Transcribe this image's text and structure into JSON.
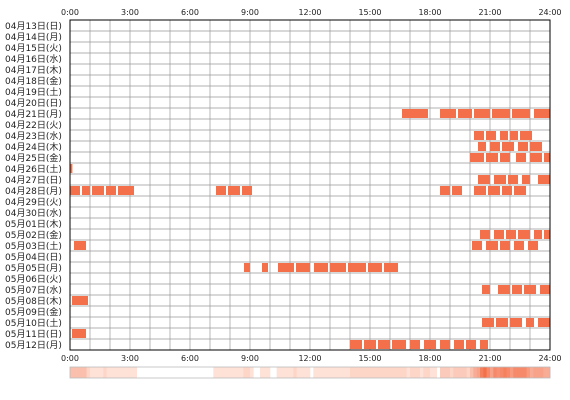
{
  "chart_data": {
    "type": "heatmap",
    "title": "",
    "xlabel": "",
    "ylabel": "",
    "x_ticks": [
      "0:00",
      "3:00",
      "6:00",
      "9:00",
      "12:00",
      "15:00",
      "18:00",
      "21:00",
      "24:00"
    ],
    "x_range_hours": [
      0,
      24
    ],
    "grid": true,
    "colors": {
      "activity": "#f4704a",
      "grid": "#999999",
      "border": "#000000",
      "density_low": "#fff3ec",
      "density_high": "#f4704a"
    },
    "rows": [
      {
        "label": "04月13日(日)",
        "segments": []
      },
      {
        "label": "04月14日(月)",
        "segments": []
      },
      {
        "label": "04月15日(火)",
        "segments": []
      },
      {
        "label": "04月16日(水)",
        "segments": []
      },
      {
        "label": "04月17日(木)",
        "segments": []
      },
      {
        "label": "04月18日(金)",
        "segments": []
      },
      {
        "label": "04月19日(土)",
        "segments": []
      },
      {
        "label": "04月20日(日)",
        "segments": []
      },
      {
        "label": "04月21日(月)",
        "segments": [
          [
            16.6,
            17.9
          ],
          [
            18.5,
            19.3
          ],
          [
            19.4,
            20.1
          ],
          [
            20.2,
            21.0
          ],
          [
            21.1,
            22.0
          ],
          [
            22.1,
            23.0
          ],
          [
            23.2,
            24.0
          ]
        ]
      },
      {
        "label": "04月22日(火)",
        "segments": []
      },
      {
        "label": "04月23日(水)",
        "segments": [
          [
            20.2,
            20.7
          ],
          [
            20.8,
            21.3
          ],
          [
            21.5,
            21.9
          ],
          [
            22.0,
            22.4
          ],
          [
            22.5,
            23.1
          ]
        ]
      },
      {
        "label": "04月24日(木)",
        "segments": [
          [
            20.4,
            20.8
          ],
          [
            21.0,
            21.5
          ],
          [
            21.6,
            22.2
          ],
          [
            22.4,
            22.9
          ],
          [
            23.0,
            23.6
          ]
        ]
      },
      {
        "label": "04月25日(金)",
        "segments": [
          [
            20.0,
            20.7
          ],
          [
            20.8,
            21.4
          ],
          [
            21.5,
            22.0
          ],
          [
            22.3,
            22.8
          ],
          [
            23.0,
            23.6
          ],
          [
            23.7,
            24.0
          ]
        ]
      },
      {
        "label": "04月26日(土)",
        "segments": [
          [
            0.0,
            0.12
          ]
        ]
      },
      {
        "label": "04月27日(日)",
        "segments": [
          [
            20.4,
            21.0
          ],
          [
            21.2,
            21.8
          ],
          [
            21.9,
            22.4
          ],
          [
            22.6,
            23.0
          ],
          [
            23.4,
            24.0
          ]
        ]
      },
      {
        "label": "04月28日(月)",
        "segments": [
          [
            0.0,
            0.5
          ],
          [
            0.6,
            1.0
          ],
          [
            1.1,
            1.7
          ],
          [
            1.8,
            2.3
          ],
          [
            2.4,
            3.2
          ],
          [
            7.3,
            7.8
          ],
          [
            7.9,
            8.5
          ],
          [
            8.6,
            9.1
          ],
          [
            18.5,
            19.0
          ],
          [
            19.1,
            19.6
          ],
          [
            20.2,
            20.8
          ],
          [
            20.9,
            21.5
          ],
          [
            21.6,
            22.1
          ],
          [
            22.2,
            22.8
          ]
        ]
      },
      {
        "label": "04月29日(火)",
        "segments": []
      },
      {
        "label": "04月30日(水)",
        "segments": []
      },
      {
        "label": "05月01日(木)",
        "segments": []
      },
      {
        "label": "05月02日(金)",
        "segments": [
          [
            20.5,
            21.0
          ],
          [
            21.2,
            21.7
          ],
          [
            21.8,
            22.3
          ],
          [
            22.4,
            23.0
          ],
          [
            23.2,
            23.6
          ],
          [
            23.7,
            24.0
          ]
        ]
      },
      {
        "label": "05月03日(土)",
        "segments": [
          [
            0.2,
            0.8
          ],
          [
            20.1,
            20.6
          ],
          [
            20.8,
            21.4
          ],
          [
            21.5,
            22.0
          ],
          [
            22.2,
            22.7
          ],
          [
            22.9,
            23.4
          ]
        ]
      },
      {
        "label": "05月04日(日)",
        "segments": []
      },
      {
        "label": "05月05日(月)",
        "segments": [
          [
            8.7,
            9.0
          ],
          [
            9.6,
            9.9
          ],
          [
            10.4,
            11.2
          ],
          [
            11.3,
            12.0
          ],
          [
            12.2,
            12.9
          ],
          [
            13.0,
            13.8
          ],
          [
            13.9,
            14.8
          ],
          [
            14.9,
            15.6
          ],
          [
            15.7,
            16.4
          ]
        ]
      },
      {
        "label": "05月06日(火)",
        "segments": []
      },
      {
        "label": "05月07日(水)",
        "segments": [
          [
            20.6,
            21.0
          ],
          [
            21.4,
            22.0
          ],
          [
            22.1,
            22.6
          ],
          [
            22.7,
            23.3
          ],
          [
            23.5,
            24.0
          ]
        ]
      },
      {
        "label": "05月08日(木)",
        "segments": [
          [
            0.1,
            0.9
          ]
        ]
      },
      {
        "label": "05月09日(金)",
        "segments": []
      },
      {
        "label": "05月10日(土)",
        "segments": [
          [
            20.6,
            21.2
          ],
          [
            21.3,
            21.9
          ],
          [
            22.0,
            22.6
          ],
          [
            22.8,
            23.2
          ],
          [
            23.4,
            24.0
          ]
        ]
      },
      {
        "label": "05月11日(日)",
        "segments": [
          [
            0.1,
            0.8
          ]
        ]
      },
      {
        "label": "05月12日(月)",
        "segments": [
          [
            14.0,
            14.6
          ],
          [
            14.7,
            15.3
          ],
          [
            15.4,
            16.0
          ],
          [
            16.1,
            16.8
          ],
          [
            17.0,
            17.5
          ],
          [
            17.7,
            18.3
          ],
          [
            18.5,
            19.0
          ],
          [
            19.2,
            19.7
          ],
          [
            19.8,
            20.3
          ],
          [
            20.5,
            20.9
          ]
        ]
      }
    ]
  }
}
